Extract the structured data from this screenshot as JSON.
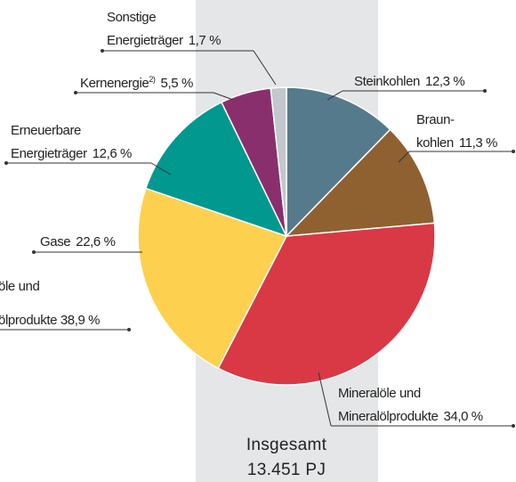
{
  "chart_data": {
    "type": "pie",
    "categories": [
      [
        "Steinkohlen"
      ],
      [
        "Braun-",
        "kohlen"
      ],
      [
        "Mineralöle und",
        "Mineralölprodukte"
      ],
      [
        "Gase"
      ],
      [
        "Erneuerbare",
        "Energieträger"
      ],
      [
        "Kernenergie"
      ],
      [
        "Sonstige",
        "Energieträger"
      ]
    ],
    "footnotes": [
      null,
      null,
      null,
      null,
      null,
      "2)",
      null
    ],
    "values": [
      12.3,
      11.3,
      34.0,
      22.6,
      12.6,
      5.5,
      1.7
    ],
    "value_labels": [
      "12,3 %",
      "11,3 %",
      "34,0 %",
      "22,6 %",
      "12,6 %",
      "5,5 %",
      "1,7 %"
    ],
    "colors": [
      "#557a8c",
      "#8f6030",
      "#d93944",
      "#fdd04f",
      "#00988f",
      "#8a2f6e",
      "#c3c8cc"
    ],
    "cropped_label": [
      "öle und",
      "ölprodukte 38,9 %"
    ],
    "total": [
      "Insgesamt",
      "13.451 PJ"
    ]
  }
}
